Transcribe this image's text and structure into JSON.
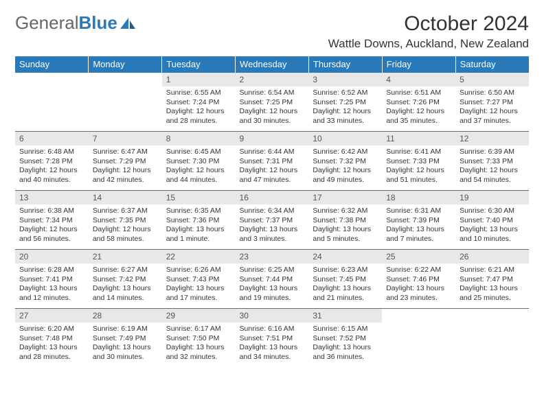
{
  "brand": {
    "part1": "General",
    "part2": "Blue"
  },
  "title": "October 2024",
  "location": "Wattle Downs, Auckland, New Zealand",
  "colors": {
    "header_bg": "#2a7ab9",
    "header_fg": "#ffffff",
    "daynum_bg": "#e8e8e8",
    "week_border": "#2a7ab9",
    "text": "#333333"
  },
  "weekdays": [
    "Sunday",
    "Monday",
    "Tuesday",
    "Wednesday",
    "Thursday",
    "Friday",
    "Saturday"
  ],
  "weeks": [
    [
      {
        "empty": true
      },
      {
        "empty": true
      },
      {
        "day": "1",
        "sunrise": "Sunrise: 6:55 AM",
        "sunset": "Sunset: 7:24 PM",
        "daylight": "Daylight: 12 hours and 28 minutes."
      },
      {
        "day": "2",
        "sunrise": "Sunrise: 6:54 AM",
        "sunset": "Sunset: 7:25 PM",
        "daylight": "Daylight: 12 hours and 30 minutes."
      },
      {
        "day": "3",
        "sunrise": "Sunrise: 6:52 AM",
        "sunset": "Sunset: 7:25 PM",
        "daylight": "Daylight: 12 hours and 33 minutes."
      },
      {
        "day": "4",
        "sunrise": "Sunrise: 6:51 AM",
        "sunset": "Sunset: 7:26 PM",
        "daylight": "Daylight: 12 hours and 35 minutes."
      },
      {
        "day": "5",
        "sunrise": "Sunrise: 6:50 AM",
        "sunset": "Sunset: 7:27 PM",
        "daylight": "Daylight: 12 hours and 37 minutes."
      }
    ],
    [
      {
        "day": "6",
        "sunrise": "Sunrise: 6:48 AM",
        "sunset": "Sunset: 7:28 PM",
        "daylight": "Daylight: 12 hours and 40 minutes."
      },
      {
        "day": "7",
        "sunrise": "Sunrise: 6:47 AM",
        "sunset": "Sunset: 7:29 PM",
        "daylight": "Daylight: 12 hours and 42 minutes."
      },
      {
        "day": "8",
        "sunrise": "Sunrise: 6:45 AM",
        "sunset": "Sunset: 7:30 PM",
        "daylight": "Daylight: 12 hours and 44 minutes."
      },
      {
        "day": "9",
        "sunrise": "Sunrise: 6:44 AM",
        "sunset": "Sunset: 7:31 PM",
        "daylight": "Daylight: 12 hours and 47 minutes."
      },
      {
        "day": "10",
        "sunrise": "Sunrise: 6:42 AM",
        "sunset": "Sunset: 7:32 PM",
        "daylight": "Daylight: 12 hours and 49 minutes."
      },
      {
        "day": "11",
        "sunrise": "Sunrise: 6:41 AM",
        "sunset": "Sunset: 7:33 PM",
        "daylight": "Daylight: 12 hours and 51 minutes."
      },
      {
        "day": "12",
        "sunrise": "Sunrise: 6:39 AM",
        "sunset": "Sunset: 7:33 PM",
        "daylight": "Daylight: 12 hours and 54 minutes."
      }
    ],
    [
      {
        "day": "13",
        "sunrise": "Sunrise: 6:38 AM",
        "sunset": "Sunset: 7:34 PM",
        "daylight": "Daylight: 12 hours and 56 minutes."
      },
      {
        "day": "14",
        "sunrise": "Sunrise: 6:37 AM",
        "sunset": "Sunset: 7:35 PM",
        "daylight": "Daylight: 12 hours and 58 minutes."
      },
      {
        "day": "15",
        "sunrise": "Sunrise: 6:35 AM",
        "sunset": "Sunset: 7:36 PM",
        "daylight": "Daylight: 13 hours and 1 minute."
      },
      {
        "day": "16",
        "sunrise": "Sunrise: 6:34 AM",
        "sunset": "Sunset: 7:37 PM",
        "daylight": "Daylight: 13 hours and 3 minutes."
      },
      {
        "day": "17",
        "sunrise": "Sunrise: 6:32 AM",
        "sunset": "Sunset: 7:38 PM",
        "daylight": "Daylight: 13 hours and 5 minutes."
      },
      {
        "day": "18",
        "sunrise": "Sunrise: 6:31 AM",
        "sunset": "Sunset: 7:39 PM",
        "daylight": "Daylight: 13 hours and 7 minutes."
      },
      {
        "day": "19",
        "sunrise": "Sunrise: 6:30 AM",
        "sunset": "Sunset: 7:40 PM",
        "daylight": "Daylight: 13 hours and 10 minutes."
      }
    ],
    [
      {
        "day": "20",
        "sunrise": "Sunrise: 6:28 AM",
        "sunset": "Sunset: 7:41 PM",
        "daylight": "Daylight: 13 hours and 12 minutes."
      },
      {
        "day": "21",
        "sunrise": "Sunrise: 6:27 AM",
        "sunset": "Sunset: 7:42 PM",
        "daylight": "Daylight: 13 hours and 14 minutes."
      },
      {
        "day": "22",
        "sunrise": "Sunrise: 6:26 AM",
        "sunset": "Sunset: 7:43 PM",
        "daylight": "Daylight: 13 hours and 17 minutes."
      },
      {
        "day": "23",
        "sunrise": "Sunrise: 6:25 AM",
        "sunset": "Sunset: 7:44 PM",
        "daylight": "Daylight: 13 hours and 19 minutes."
      },
      {
        "day": "24",
        "sunrise": "Sunrise: 6:23 AM",
        "sunset": "Sunset: 7:45 PM",
        "daylight": "Daylight: 13 hours and 21 minutes."
      },
      {
        "day": "25",
        "sunrise": "Sunrise: 6:22 AM",
        "sunset": "Sunset: 7:46 PM",
        "daylight": "Daylight: 13 hours and 23 minutes."
      },
      {
        "day": "26",
        "sunrise": "Sunrise: 6:21 AM",
        "sunset": "Sunset: 7:47 PM",
        "daylight": "Daylight: 13 hours and 25 minutes."
      }
    ],
    [
      {
        "day": "27",
        "sunrise": "Sunrise: 6:20 AM",
        "sunset": "Sunset: 7:48 PM",
        "daylight": "Daylight: 13 hours and 28 minutes."
      },
      {
        "day": "28",
        "sunrise": "Sunrise: 6:19 AM",
        "sunset": "Sunset: 7:49 PM",
        "daylight": "Daylight: 13 hours and 30 minutes."
      },
      {
        "day": "29",
        "sunrise": "Sunrise: 6:17 AM",
        "sunset": "Sunset: 7:50 PM",
        "daylight": "Daylight: 13 hours and 32 minutes."
      },
      {
        "day": "30",
        "sunrise": "Sunrise: 6:16 AM",
        "sunset": "Sunset: 7:51 PM",
        "daylight": "Daylight: 13 hours and 34 minutes."
      },
      {
        "day": "31",
        "sunrise": "Sunrise: 6:15 AM",
        "sunset": "Sunset: 7:52 PM",
        "daylight": "Daylight: 13 hours and 36 minutes."
      },
      {
        "empty": true
      },
      {
        "empty": true
      }
    ]
  ]
}
